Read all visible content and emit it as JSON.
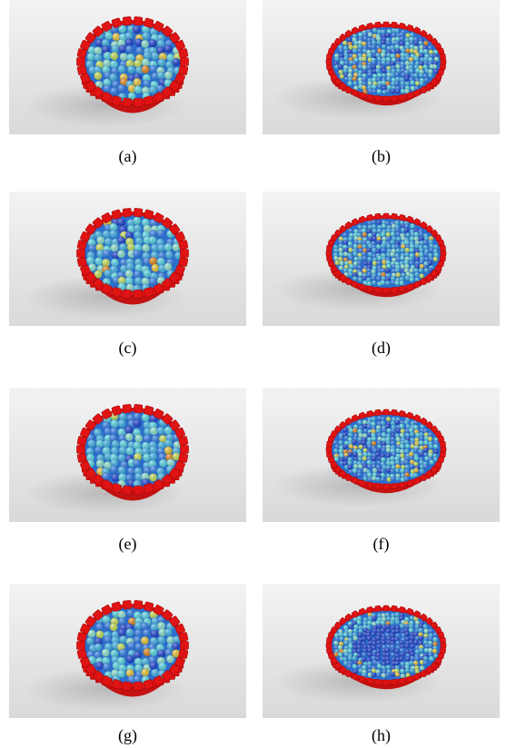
{
  "figure": {
    "panels": [
      {
        "caption": "(a)",
        "grain": "coarse",
        "fill": "near-full"
      },
      {
        "caption": "(b)",
        "grain": "fine",
        "fill": "near-full"
      },
      {
        "caption": "(c)",
        "grain": "coarse",
        "fill": "near-full"
      },
      {
        "caption": "(d)",
        "grain": "fine",
        "fill": "near-full"
      },
      {
        "caption": "(e)",
        "grain": "coarse",
        "fill": "near-full"
      },
      {
        "caption": "(f)",
        "grain": "fine",
        "fill": "near-full"
      },
      {
        "caption": "(g)",
        "grain": "coarse",
        "fill": "near-full"
      },
      {
        "caption": "(h)",
        "grain": "fine",
        "fill": "near-full",
        "center": "dark-blue"
      }
    ],
    "colors": {
      "background": "#e6e6e6",
      "container": "#e01414",
      "particle_palette": [
        "#1a3fd6",
        "#2f7ff0",
        "#3fb6ee",
        "#57dced",
        "#8ee8d5",
        "#c9e65a",
        "#f0cc3a",
        "#e88a1e"
      ]
    }
  }
}
